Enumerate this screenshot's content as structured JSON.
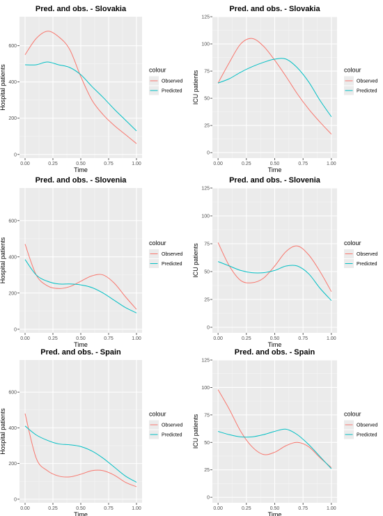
{
  "chart_data": [
    {
      "type": "line",
      "title": "Pred. and obs. - Slovakia",
      "xlabel": "Time",
      "ylabel": "Hospital patients",
      "xlim": [
        0,
        1
      ],
      "ylim": [
        -20,
        760
      ],
      "x_ticks": [
        "0.00",
        "0.25",
        "0.50",
        "0.75",
        "1.00"
      ],
      "y_ticks": [
        "0",
        "200",
        "400",
        "600"
      ],
      "grid": true,
      "legend": {
        "title": "colour",
        "position": "right"
      },
      "x": [
        0,
        0.1,
        0.2,
        0.3,
        0.4,
        0.5,
        0.6,
        0.7,
        0.8,
        0.9,
        1.0
      ],
      "series": [
        {
          "name": "Observed",
          "color": "#F8766D",
          "values": [
            550,
            640,
            680,
            650,
            580,
            430,
            300,
            220,
            160,
            110,
            60
          ]
        },
        {
          "name": "Predicted",
          "color": "#00BFC4",
          "values": [
            495,
            495,
            510,
            495,
            480,
            440,
            375,
            315,
            250,
            190,
            130
          ]
        }
      ]
    },
    {
      "type": "line",
      "title": "Pred. and obs. - Slovakia",
      "xlabel": "Time",
      "ylabel": "ICU patients",
      "xlim": [
        0,
        1
      ],
      "ylim": [
        -5,
        125
      ],
      "x_ticks": [
        "0.00",
        "0.25",
        "0.50",
        "0.75",
        "1.00"
      ],
      "y_ticks": [
        "0",
        "25",
        "50",
        "75",
        "100",
        "125"
      ],
      "grid": true,
      "legend": {
        "title": "colour",
        "position": "right"
      },
      "x": [
        0,
        0.1,
        0.2,
        0.3,
        0.4,
        0.5,
        0.6,
        0.7,
        0.8,
        0.9,
        1.0
      ],
      "series": [
        {
          "name": "Observed",
          "color": "#F8766D",
          "values": [
            64,
            83,
            100,
            105,
            98,
            85,
            70,
            54,
            40,
            28,
            17
          ]
        },
        {
          "name": "Predicted",
          "color": "#00BFC4",
          "values": [
            64,
            68,
            74,
            79,
            83,
            86,
            86,
            78,
            65,
            48,
            33
          ]
        }
      ]
    },
    {
      "type": "line",
      "title": "Pred. and obs. - Slovenia",
      "xlabel": "Time",
      "ylabel": "Hospital patients",
      "xlim": [
        0,
        1
      ],
      "ylim": [
        -20,
        780
      ],
      "x_ticks": [
        "0.00",
        "0.25",
        "0.50",
        "0.75",
        "1.00"
      ],
      "y_ticks": [
        "0",
        "200",
        "400",
        "600"
      ],
      "grid": true,
      "legend": {
        "title": "colour",
        "position": "right"
      },
      "x": [
        0,
        0.1,
        0.2,
        0.3,
        0.4,
        0.5,
        0.6,
        0.7,
        0.8,
        0.9,
        1.0
      ],
      "series": [
        {
          "name": "Observed",
          "color": "#F8766D",
          "values": [
            470,
            300,
            240,
            225,
            235,
            265,
            295,
            300,
            255,
            180,
            110
          ]
        },
        {
          "name": "Predicted",
          "color": "#00BFC4",
          "values": [
            385,
            300,
            265,
            250,
            250,
            245,
            230,
            200,
            160,
            120,
            90
          ]
        }
      ]
    },
    {
      "type": "line",
      "title": "Pred. and obs. - Slovenia",
      "xlabel": "Time",
      "ylabel": "ICU patients",
      "xlim": [
        0,
        1
      ],
      "ylim": [
        -5,
        125
      ],
      "x_ticks": [
        "0.00",
        "0.25",
        "0.50",
        "0.75",
        "1.00"
      ],
      "y_ticks": [
        "0",
        "25",
        "50",
        "75",
        "100",
        "125"
      ],
      "grid": true,
      "legend": {
        "title": "colour",
        "position": "right"
      },
      "x": [
        0,
        0.1,
        0.2,
        0.3,
        0.4,
        0.5,
        0.6,
        0.7,
        0.8,
        0.9,
        1.0
      ],
      "series": [
        {
          "name": "Observed",
          "color": "#F8766D",
          "values": [
            76,
            55,
            42,
            40,
            44,
            55,
            68,
            73,
            65,
            50,
            32
          ]
        },
        {
          "name": "Predicted",
          "color": "#00BFC4",
          "values": [
            59,
            55,
            51,
            49,
            49,
            51,
            55,
            55,
            48,
            35,
            24
          ]
        }
      ]
    },
    {
      "type": "line",
      "title": "Pred. and obs. - Spain",
      "xlabel": "Time",
      "ylabel": "Hospital patients",
      "xlim": [
        0,
        1
      ],
      "ylim": [
        -20,
        780
      ],
      "x_ticks": [
        "0.00",
        "0.25",
        "0.50",
        "0.75",
        "1.00"
      ],
      "y_ticks": [
        "0",
        "200",
        "400",
        "600"
      ],
      "grid": true,
      "legend": {
        "title": "colour",
        "position": "right"
      },
      "x": [
        0,
        0.1,
        0.2,
        0.3,
        0.4,
        0.5,
        0.6,
        0.7,
        0.8,
        0.9,
        1.0
      ],
      "series": [
        {
          "name": "Observed",
          "color": "#F8766D",
          "values": [
            480,
            230,
            160,
            130,
            125,
            140,
            160,
            160,
            135,
            95,
            70
          ]
        },
        {
          "name": "Predicted",
          "color": "#00BFC4",
          "values": [
            410,
            360,
            330,
            310,
            305,
            295,
            270,
            230,
            180,
            130,
            95
          ]
        }
      ]
    },
    {
      "type": "line",
      "title": "Pred. and obs. - Spain",
      "xlabel": "Time",
      "ylabel": "ICU patients",
      "xlim": [
        0,
        1
      ],
      "ylim": [
        -5,
        125
      ],
      "x_ticks": [
        "0.00",
        "0.25",
        "0.50",
        "0.75",
        "1.00"
      ],
      "y_ticks": [
        "0",
        "25",
        "50",
        "75",
        "100",
        "125"
      ],
      "grid": true,
      "legend": {
        "title": "colour",
        "position": "right"
      },
      "x": [
        0,
        0.1,
        0.2,
        0.3,
        0.4,
        0.5,
        0.6,
        0.7,
        0.8,
        0.9,
        1.0
      ],
      "series": [
        {
          "name": "Observed",
          "color": "#F8766D",
          "values": [
            98,
            80,
            60,
            46,
            39,
            41,
            47,
            50,
            46,
            36,
            27
          ]
        },
        {
          "name": "Predicted",
          "color": "#00BFC4",
          "values": [
            60,
            57,
            55,
            55,
            57,
            60,
            62,
            57,
            48,
            37,
            26
          ]
        }
      ]
    }
  ]
}
